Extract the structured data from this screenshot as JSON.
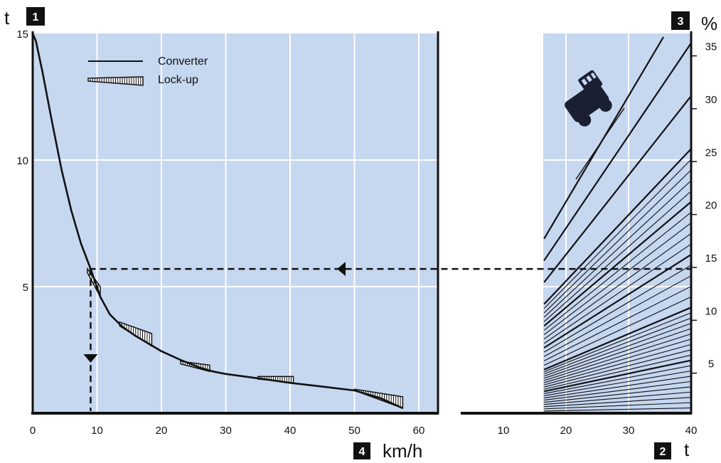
{
  "badges": {
    "one": "1",
    "two": "2",
    "three": "3",
    "four": "4"
  },
  "units": {
    "left_y": "t",
    "right_y": "%",
    "left_x": "km/h",
    "right_x": "t"
  },
  "legend": {
    "converter": "Converter",
    "lockup": "Lock-up"
  },
  "colors": {
    "panel": "#c6d7f0",
    "grid": "#ffffff",
    "ink": "#111111"
  },
  "chart_data": [
    {
      "type": "line",
      "title": "",
      "xlabel": "km/h",
      "ylabel": "t",
      "xlim": [
        0,
        63
      ],
      "ylim": [
        0,
        15
      ],
      "x_ticks": [
        "0",
        "10",
        "20",
        "30",
        "40",
        "50",
        "60"
      ],
      "y_ticks": [
        "5",
        "10",
        "15"
      ],
      "grid": true,
      "legend_position": "top-left",
      "series": [
        {
          "name": "Converter",
          "x": [
            0,
            0.5,
            1.5,
            3,
            4.5,
            6,
            7.5,
            9,
            10.5,
            12,
            14,
            16,
            18,
            20,
            23,
            26,
            28,
            30,
            35,
            40,
            45,
            50,
            54,
            57.5
          ],
          "y": [
            15,
            14.7,
            13.5,
            11.5,
            9.6,
            8,
            6.7,
            5.7,
            4.6,
            3.9,
            3.4,
            3.05,
            2.75,
            2.45,
            2.1,
            1.8,
            1.65,
            1.55,
            1.38,
            1.2,
            1.05,
            0.9,
            0.6,
            0.2
          ]
        },
        {
          "name": "Lock-up",
          "segments": [
            {
              "x": [
                8.5,
                10.5
              ],
              "y_upper": [
                5.7,
                5.0
              ],
              "y_lower": [
                5.55,
                4.6
              ]
            },
            {
              "x": [
                13.5,
                18.5
              ],
              "y_upper": [
                3.6,
                3.15
              ],
              "y_lower": [
                3.45,
                2.65
              ]
            },
            {
              "x": [
                23,
                27.5
              ],
              "y_upper": [
                2.05,
                1.9
              ],
              "y_lower": [
                1.95,
                1.65
              ]
            },
            {
              "x": [
                35,
                40.5
              ],
              "y_upper": [
                1.45,
                1.45
              ],
              "y_lower": [
                1.35,
                1.2
              ]
            },
            {
              "x": [
                50,
                57.5
              ],
              "y_upper": [
                0.95,
                0.65
              ],
              "y_lower": [
                0.9,
                0.2
              ]
            }
          ]
        }
      ],
      "annotation": {
        "type": "dashed-arrow",
        "y": 5.7,
        "x": 9
      }
    },
    {
      "type": "line",
      "title": "",
      "xlabel": "t",
      "ylabel": "%",
      "xlim": [
        0,
        40
      ],
      "ylim": [
        0,
        15
      ],
      "x_ticks": [
        "10",
        "20",
        "30",
        "40"
      ],
      "grade_ticks": [
        "5",
        "10",
        "15",
        "20",
        "25",
        "30",
        "35"
      ],
      "grid": true,
      "grade_lines_percent": [
        0.5,
        1,
        1.5,
        2,
        2.5,
        3,
        3.5,
        4,
        4.5,
        5,
        5.5,
        6,
        6.5,
        7,
        7.5,
        8,
        8.5,
        9,
        9.5,
        10,
        11,
        12,
        13,
        14,
        15,
        16,
        17,
        18,
        19,
        20,
        21,
        22,
        23,
        24,
        25,
        30,
        35,
        40
      ],
      "x_start": 16.5,
      "annotation": {
        "type": "dashed-arrow",
        "y": 5.7
      }
    }
  ]
}
